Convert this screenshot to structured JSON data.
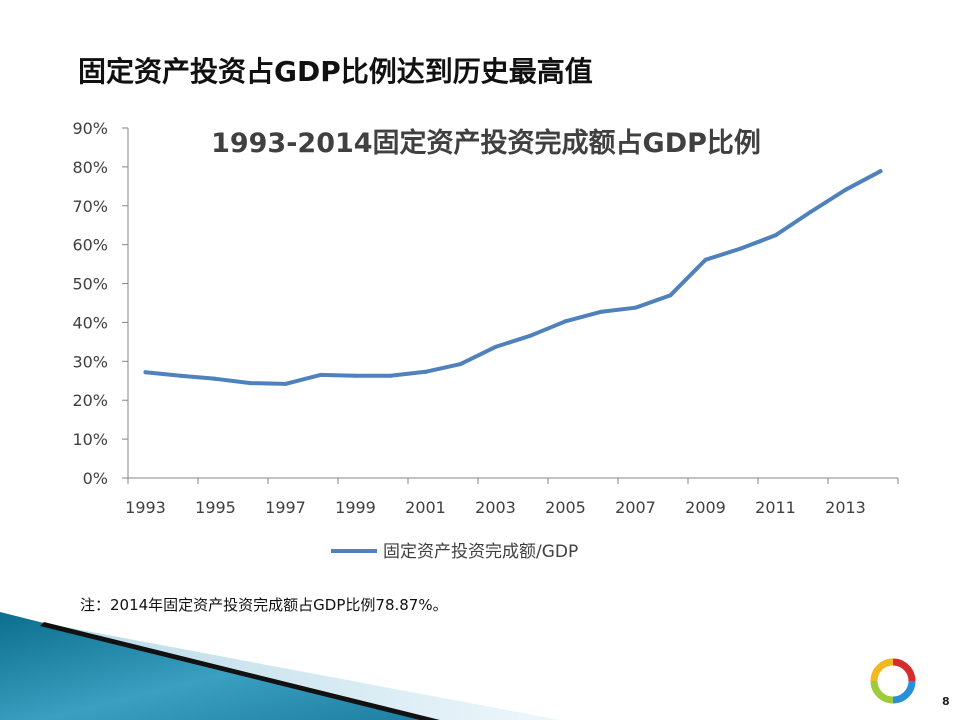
{
  "slide": {
    "title": "固定资产投资占GDP比例达到历史最高值",
    "footnote": "注：2014年固定资产投资完成额占GDP比例78.87%。",
    "page_number": "8"
  },
  "chart_data": {
    "type": "line",
    "title": "1993-2014固定资产投资完成额占GDP比例",
    "xlabel": "",
    "ylabel": "",
    "x": [
      1993,
      1994,
      1995,
      1996,
      1997,
      1998,
      1999,
      2000,
      2001,
      2002,
      2003,
      2004,
      2005,
      2006,
      2007,
      2008,
      2009,
      2010,
      2011,
      2012,
      2013,
      2014
    ],
    "x_tick_labels": [
      "1993",
      "1995",
      "1997",
      "1999",
      "2001",
      "2003",
      "2005",
      "2007",
      "2009",
      "2011",
      "2013"
    ],
    "y_tick_labels": [
      "0%",
      "10%",
      "20%",
      "30%",
      "40%",
      "50%",
      "60%",
      "70%",
      "80%",
      "90%"
    ],
    "ylim": [
      0,
      90
    ],
    "grid": false,
    "legend_position": "bottom",
    "series": [
      {
        "name": "固定资产投资完成额/GDP",
        "color": "#4f81bd",
        "values": [
          27.2,
          26.3,
          25.5,
          24.4,
          24.2,
          26.5,
          26.3,
          26.3,
          27.3,
          29.3,
          33.7,
          36.6,
          40.3,
          42.7,
          43.8,
          47.0,
          56.1,
          59.0,
          62.4,
          68.4,
          74.1,
          78.9
        ]
      }
    ]
  },
  "colors": {
    "series_line": "#4f81bd",
    "axis": "#868686",
    "text": "#404040"
  },
  "icons": {
    "logo": "circular-ring-logo-icon"
  }
}
